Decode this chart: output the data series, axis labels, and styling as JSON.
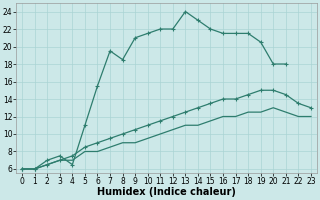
{
  "xlabel": "Humidex (Indice chaleur)",
  "bg_color": "#cce8e8",
  "line_color": "#2e7d6e",
  "xlim": [
    -0.5,
    23.5
  ],
  "ylim": [
    5.5,
    25.0
  ],
  "xticks": [
    0,
    1,
    2,
    3,
    4,
    5,
    6,
    7,
    8,
    9,
    10,
    11,
    12,
    13,
    14,
    15,
    16,
    17,
    18,
    19,
    20,
    21,
    22,
    23
  ],
  "yticks": [
    6,
    8,
    10,
    12,
    14,
    16,
    18,
    20,
    22,
    24
  ],
  "line1_x": [
    0,
    1,
    2,
    3,
    4,
    5,
    6,
    7,
    8,
    9,
    10,
    11,
    12,
    13,
    14,
    15,
    16,
    17,
    18,
    19,
    20,
    21
  ],
  "line1_y": [
    6,
    6,
    7,
    7.5,
    6.5,
    11,
    15.5,
    19.5,
    18.5,
    21,
    21.5,
    22,
    22,
    24,
    23,
    22,
    21.5,
    21.5,
    21.5,
    20.5,
    18,
    18
  ],
  "line2_x": [
    0,
    1,
    2,
    3,
    4,
    5,
    6,
    7,
    8,
    9,
    10,
    11,
    12,
    13,
    14,
    15,
    16,
    17,
    18,
    19,
    20,
    21,
    22,
    23
  ],
  "line2_y": [
    6,
    6,
    6.5,
    7,
    7.5,
    8.5,
    9,
    9.5,
    10,
    10.5,
    11,
    11.5,
    12,
    12.5,
    13,
    13.5,
    14,
    14,
    14.5,
    15,
    15,
    14.5,
    13.5,
    13
  ],
  "line3_x": [
    0,
    1,
    2,
    3,
    4,
    5,
    6,
    7,
    8,
    9,
    10,
    11,
    12,
    13,
    14,
    15,
    16,
    17,
    18,
    19,
    20,
    21,
    22,
    23
  ],
  "line3_y": [
    6,
    6,
    6.5,
    7,
    7,
    8,
    8,
    8.5,
    9,
    9,
    9.5,
    10,
    10.5,
    11,
    11,
    11.5,
    12,
    12,
    12.5,
    12.5,
    13,
    12.5,
    12,
    12
  ],
  "grid_color": "#aad4d4",
  "font_size_label": 7,
  "font_size_tick": 5.5
}
